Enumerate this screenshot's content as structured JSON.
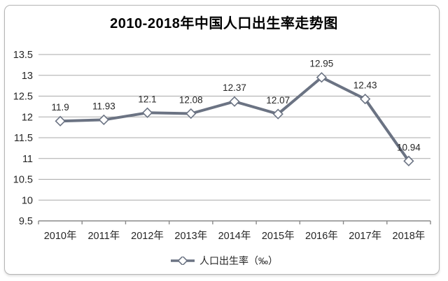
{
  "chart_data": {
    "type": "line",
    "title": "2010-2018年中国人口出生率走势图",
    "categories": [
      "2010年",
      "2011年",
      "2012年",
      "2013年",
      "2014年",
      "2015年",
      "2016年",
      "2017年",
      "2018年"
    ],
    "series": [
      {
        "name": "人口出生率（‰）",
        "values": [
          11.9,
          11.93,
          12.1,
          12.08,
          12.37,
          12.07,
          12.95,
          12.43,
          10.94
        ],
        "point_labels": [
          "11.9",
          "11.93",
          "12.1",
          "12.08",
          "12.37",
          "12.07",
          "12.95",
          "12.43",
          "10.94"
        ]
      }
    ],
    "ylim": [
      9.5,
      13.5
    ],
    "ytick_labels": [
      "13.5",
      "13",
      "12.5",
      "12",
      "11.5",
      "11",
      "10.5",
      "10",
      "9.5"
    ],
    "grid": true,
    "legend_position": "bottom",
    "marker": "diamond-white",
    "colors": {
      "line": "#6b7383",
      "marker_fill": "#ffffff",
      "grid": "#a9a9a9",
      "axis": "#8a8a8a",
      "text": "#262626",
      "title": "#000000",
      "frame_border": "#b5b5b5"
    }
  }
}
